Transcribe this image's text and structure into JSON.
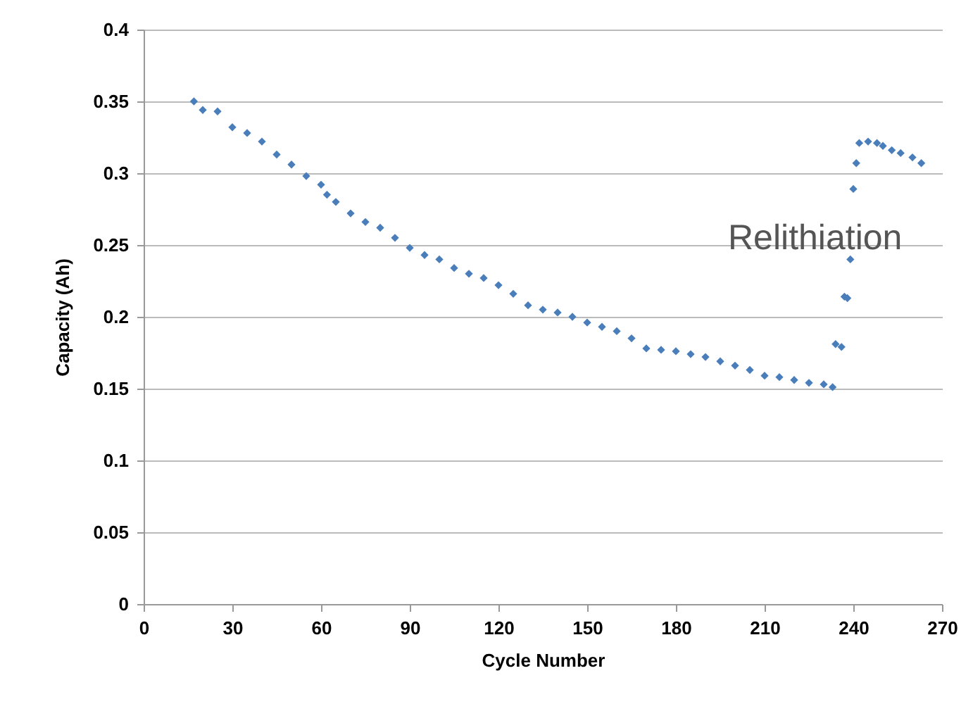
{
  "chart_data": {
    "type": "scatter",
    "xlabel": "Cycle Number",
    "ylabel": "Capacity (Ah)",
    "x": [
      17,
      20,
      25,
      30,
      35,
      40,
      45,
      50,
      55,
      60,
      62,
      65,
      70,
      75,
      80,
      85,
      90,
      95,
      100,
      105,
      110,
      115,
      120,
      125,
      130,
      135,
      140,
      145,
      150,
      155,
      160,
      165,
      170,
      175,
      180,
      185,
      190,
      195,
      200,
      205,
      210,
      215,
      220,
      225,
      230,
      233,
      234,
      236,
      237,
      238,
      239,
      240,
      241,
      242,
      245,
      248,
      250,
      253,
      256,
      260,
      263
    ],
    "series": [
      {
        "color": "#4a7ebb",
        "values": [
          0.35,
          0.344,
          0.343,
          0.332,
          0.328,
          0.322,
          0.313,
          0.306,
          0.298,
          0.292,
          0.285,
          0.28,
          0.272,
          0.266,
          0.262,
          0.255,
          0.248,
          0.243,
          0.24,
          0.234,
          0.23,
          0.227,
          0.222,
          0.216,
          0.208,
          0.205,
          0.203,
          0.2,
          0.196,
          0.193,
          0.19,
          0.185,
          0.178,
          0.177,
          0.176,
          0.174,
          0.172,
          0.169,
          0.166,
          0.163,
          0.159,
          0.158,
          0.156,
          0.154,
          0.153,
          0.151,
          0.181,
          0.179,
          0.214,
          0.213,
          0.24,
          0.289,
          0.307,
          0.321,
          0.322,
          0.321,
          0.319,
          0.316,
          0.314,
          0.311,
          0.307
        ]
      }
    ],
    "xlim": [
      0,
      270
    ],
    "xticks": [
      0,
      30,
      60,
      90,
      120,
      150,
      180,
      210,
      240,
      270
    ],
    "ylim": [
      0,
      0.4
    ],
    "yticks": [
      0,
      0.05,
      0.1,
      0.15,
      0.2,
      0.25,
      0.3,
      0.35,
      0.4
    ],
    "grid": "y",
    "marker": "diamond",
    "annotations": [
      "Relithiation"
    ]
  }
}
